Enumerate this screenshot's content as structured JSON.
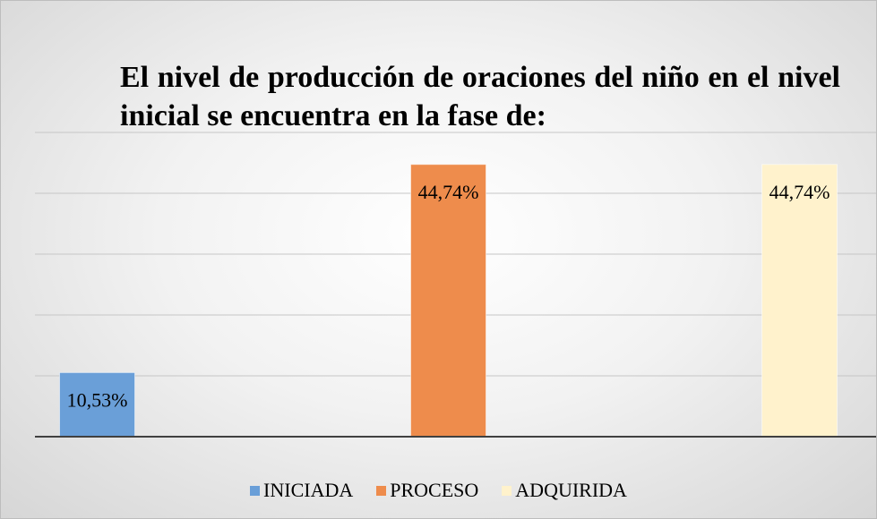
{
  "chart_data": {
    "type": "bar",
    "title": "El nivel de producción de oraciones del niño en el nivel inicial se encuentra en la fase de:",
    "categories": [
      null
    ],
    "series": [
      {
        "name": "INICIADA",
        "color": "#6a9fd8",
        "values": [
          10.53
        ],
        "value_labels": [
          "10,53%"
        ]
      },
      {
        "name": "PROCESO",
        "color": "#ee8c4c",
        "values": [
          44.74
        ],
        "value_labels": [
          "44,74%"
        ]
      },
      {
        "name": "ADQUIRIDA",
        "color": "#fff2cc",
        "values": [
          44.74
        ],
        "value_labels": [
          "44,74%"
        ]
      }
    ],
    "ylim": [
      0,
      50
    ],
    "yticks": [
      0,
      10,
      20,
      30,
      40,
      50
    ],
    "grid": true,
    "legend": "bottom"
  }
}
